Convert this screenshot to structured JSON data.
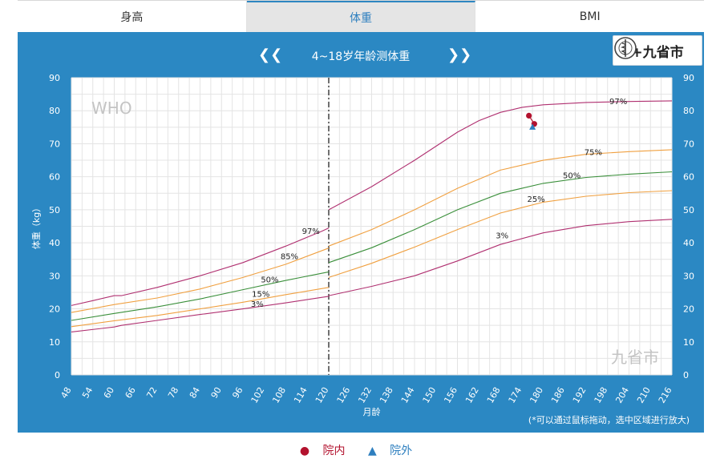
{
  "tabs": [
    {
      "label": "身高",
      "active": false
    },
    {
      "label": "体重",
      "active": true
    },
    {
      "label": "BMI",
      "active": false
    }
  ],
  "header": {
    "prev_icon": "double-chevron-left",
    "next_icon": "double-chevron-right",
    "title": "4~18岁年龄测体重",
    "logo_label": "+九省市"
  },
  "legend": {
    "in_label": "院内",
    "out_label": "院外",
    "in_marker": "●",
    "out_marker": "▲",
    "in_color": "#b3122e",
    "out_color": "#2e7fbf"
  },
  "chart_data": {
    "type": "line",
    "xlabel": "月龄",
    "ylabel": "体重（kg）",
    "xlim": [
      48,
      216
    ],
    "ylim": [
      0,
      90
    ],
    "xticks": [
      48,
      54,
      60,
      66,
      72,
      78,
      84,
      90,
      96,
      102,
      108,
      114,
      120,
      126,
      132,
      138,
      144,
      150,
      156,
      162,
      168,
      174,
      180,
      186,
      192,
      198,
      204,
      210,
      216
    ],
    "yticks": [
      0,
      10,
      20,
      30,
      40,
      50,
      60,
      70,
      80,
      90
    ],
    "divider_month": 120,
    "watermark_left": "WHO",
    "watermark_right": "九省市",
    "note": "(*可以通过鼠标拖动，选中区域进行放大)",
    "series": [
      {
        "name": "97%",
        "color": "#b03070",
        "x": [
          48,
          54,
          60,
          62,
          72,
          84,
          96,
          108,
          118,
          120
        ],
        "y": [
          21,
          22.5,
          24,
          24,
          26.5,
          30,
          34,
          39,
          43.5,
          44.5
        ],
        "label_x": 115,
        "label_y": 42.7
      },
      {
        "name": "85%",
        "color": "#f0a040",
        "x": [
          48,
          60,
          72,
          84,
          96,
          108,
          120
        ],
        "y": [
          18.9,
          21.3,
          23.3,
          26,
          29.5,
          33.5,
          38.4
        ],
        "label_x": 109,
        "label_y": 35
      },
      {
        "name": "50%",
        "color": "#3a8f3a",
        "x": [
          48,
          60,
          72,
          84,
          96,
          108,
          120
        ],
        "y": [
          16.5,
          18.6,
          20.6,
          23,
          25.8,
          28.6,
          31.2
        ],
        "label_x": 103.5,
        "label_y": 28
      },
      {
        "name": "15%",
        "color": "#f0a040",
        "x": [
          48,
          60,
          72,
          84,
          96,
          108,
          120
        ],
        "y": [
          14.6,
          16.4,
          18,
          20,
          22,
          24.3,
          26.5
        ],
        "label_x": 101,
        "label_y": 23.6
      },
      {
        "name": "3%",
        "color": "#b03070",
        "x": [
          48,
          60,
          62,
          72,
          84,
          96,
          108,
          120
        ],
        "y": [
          13,
          14.5,
          15,
          16.5,
          18.3,
          20,
          21.8,
          23.8
        ],
        "label_x": 100,
        "label_y": 20.6
      },
      {
        "name": "97%",
        "color": "#b03070",
        "x": [
          120,
          132,
          144,
          156,
          162,
          168,
          174,
          180,
          192,
          204,
          216
        ],
        "y": [
          50,
          57,
          65,
          73.5,
          77,
          79.5,
          81,
          81.8,
          82.5,
          82.8,
          83
        ],
        "label_x": 201,
        "label_y": 82
      },
      {
        "name": "75%",
        "color": "#f0a040",
        "x": [
          120,
          132,
          144,
          156,
          168,
          180,
          192,
          204,
          216
        ],
        "y": [
          39,
          44,
          50,
          56.5,
          62,
          65,
          66.8,
          67.6,
          68.2
        ],
        "label_x": 194,
        "label_y": 66.6
      },
      {
        "name": "50%",
        "color": "#3a8f3a",
        "x": [
          120,
          132,
          144,
          156,
          168,
          180,
          192,
          204,
          216
        ],
        "y": [
          34,
          38.5,
          44,
          50,
          55,
          58,
          59.8,
          60.8,
          61.5
        ],
        "label_x": 188,
        "label_y": 59.6
      },
      {
        "name": "25%",
        "color": "#f0a040",
        "x": [
          120,
          132,
          144,
          156,
          168,
          180,
          192,
          204,
          216
        ],
        "y": [
          29.5,
          33.8,
          38.7,
          44,
          49,
          52.3,
          54.1,
          55.2,
          55.8
        ],
        "label_x": 178,
        "label_y": 52.4
      },
      {
        "name": "3%",
        "color": "#b03070",
        "x": [
          120,
          132,
          144,
          156,
          168,
          180,
          192,
          204,
          216
        ],
        "y": [
          24,
          26.8,
          30,
          34.5,
          39.5,
          43,
          45.2,
          46.4,
          47.1
        ],
        "label_x": 168.5,
        "label_y": 41.4
      }
    ],
    "points": [
      {
        "group": "院内",
        "x": 176,
        "y": 78.5
      },
      {
        "group": "院内",
        "x": 177.5,
        "y": 76
      },
      {
        "group": "院外",
        "x": 177,
        "y": 75
      }
    ]
  }
}
